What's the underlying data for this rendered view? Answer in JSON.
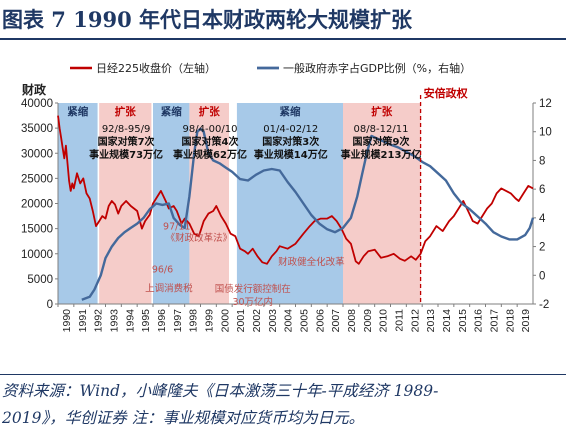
{
  "header": {
    "title": "图表 7   1990 年代日本财政两轮大规模扩张"
  },
  "footer": {
    "source_line1": "资料来源：Wind，小峰隆夫《日本激荡三十年-平成经济 1989-",
    "source_line2": "2019》，华创证券  注：事业规模对应货币均为日元。"
  },
  "chart_data": {
    "type": "line",
    "legend": {
      "placement": "top",
      "items": [
        "日经225收盘价（左轴）",
        "一般政府赤字占GDP比例（%，右轴）"
      ]
    },
    "left_axis_title": "财政",
    "left_axis": {
      "min": 0,
      "max": 40000,
      "step": 5000,
      "tick_labels": [
        "0",
        "5000",
        "10000",
        "15000",
        "20000",
        "25000",
        "30000",
        "35000",
        "40000"
      ]
    },
    "right_axis": {
      "min": -2,
      "max": 12,
      "step": 2,
      "tick_labels": [
        "-2",
        "0",
        "2",
        "4",
        "6",
        "8",
        "10",
        "12"
      ]
    },
    "x_axis": {
      "min": 1990,
      "max": 2020,
      "tick_labels": [
        "1990",
        "1991",
        "1992",
        "1993",
        "1994",
        "1995",
        "1996",
        "1997",
        "1998",
        "1999",
        "2000",
        "2001",
        "2002",
        "2003",
        "2004",
        "2005",
        "2006",
        "2007",
        "2008",
        "2009",
        "2010",
        "2011",
        "2012",
        "2013",
        "2014",
        "2015",
        "2016",
        "2017",
        "2018",
        "2019"
      ]
    },
    "grid": false,
    "colors": {
      "nikkei": "#c00000",
      "deficit": "#44699b",
      "tight": "#9dc3e6",
      "expand": "#f4c7c3",
      "annotation": "#c0504d",
      "abe_line": "#c00000"
    },
    "periods": [
      {
        "start": 1990.0,
        "end": 1992.5,
        "kind": "tight",
        "label": "紧缩"
      },
      {
        "start": 1992.6,
        "end": 1995.9,
        "kind": "expand",
        "label": "扩张"
      },
      {
        "start": 1996.0,
        "end": 1998.3,
        "kind": "tight",
        "label": "紧缩"
      },
      {
        "start": 1998.3,
        "end": 2000.8,
        "kind": "expand",
        "label": "扩张"
      },
      {
        "start": 2001.3,
        "end": 2008.0,
        "kind": "tight",
        "label": "紧缩"
      },
      {
        "start": 2008.0,
        "end": 2012.9,
        "kind": "expand",
        "label": "扩张"
      }
    ],
    "box_labels": [
      {
        "x": 1994.3,
        "lines": [
          "92/8-95/9",
          "国家对策7次",
          "事业规模73万亿"
        ]
      },
      {
        "x": 1999.6,
        "lines": [
          "98/4-00/10",
          "国家对策4次",
          "事业规模62万亿"
        ]
      },
      {
        "x": 2004.7,
        "lines": [
          "01/4-02/12",
          "国家对策3次",
          "事业规模14万亿"
        ]
      },
      {
        "x": 2010.4,
        "lines": [
          "08/8-12/11",
          "国家对策9次",
          "事业规模213万亿"
        ]
      }
    ],
    "abe": {
      "x": 2012.9,
      "label": "安倍政权"
    },
    "annotations": [
      {
        "x": 1997.5,
        "y": 14800,
        "text": "97/11"
      },
      {
        "x": 1998.9,
        "y": 12500,
        "text": "《财政改革法》"
      },
      {
        "x": 1996.6,
        "y": 6300,
        "text": "96/6"
      },
      {
        "x": 1997.0,
        "y": 2500,
        "text": "上调消费税"
      },
      {
        "x": 2006.0,
        "y": 7800,
        "text": "财政健全化改革"
      },
      {
        "x": 2002.3,
        "y": 2400,
        "text": "国债发行额控制在"
      },
      {
        "x": 2002.3,
        "y": -200,
        "text": "30万亿内"
      }
    ],
    "series": [
      {
        "name": "日经225收盘价（左轴）",
        "axis": "left",
        "x": [
          1990.0,
          1990.1,
          1990.2,
          1990.3,
          1990.4,
          1990.5,
          1990.6,
          1990.7,
          1990.8,
          1990.9,
          1991.0,
          1991.2,
          1991.4,
          1991.6,
          1991.8,
          1992.0,
          1992.2,
          1992.4,
          1992.6,
          1992.8,
          1993.0,
          1993.2,
          1993.4,
          1993.6,
          1993.8,
          1994.0,
          1994.3,
          1994.6,
          1995.0,
          1995.3,
          1995.5,
          1995.8,
          1996.0,
          1996.3,
          1996.5,
          1996.8,
          1997.0,
          1997.3,
          1997.5,
          1997.8,
          1998.0,
          1998.3,
          1998.6,
          1998.9,
          1999.2,
          1999.5,
          1999.8,
          2000.0,
          2000.3,
          2000.6,
          2000.9,
          2001.2,
          2001.5,
          2001.8,
          2002.0,
          2002.3,
          2002.6,
          2002.9,
          2003.2,
          2003.5,
          2003.8,
          2004.0,
          2004.5,
          2005.0,
          2005.5,
          2005.9,
          2006.2,
          2006.6,
          2007.0,
          2007.3,
          2007.6,
          2007.9,
          2008.2,
          2008.5,
          2008.8,
          2009.0,
          2009.3,
          2009.6,
          2010.0,
          2010.4,
          2010.8,
          2011.2,
          2011.6,
          2011.9,
          2012.3,
          2012.6,
          2012.9,
          2013.2,
          2013.5,
          2013.9,
          2014.3,
          2014.7,
          2015.0,
          2015.4,
          2015.6,
          2015.9,
          2016.2,
          2016.5,
          2016.8,
          2017.1,
          2017.4,
          2017.7,
          2018.0,
          2018.3,
          2018.6,
          2018.9,
          2019.1,
          2019.4,
          2019.7,
          2020.0
        ],
        "y": [
          37500,
          35000,
          33000,
          31000,
          29000,
          31500,
          28000,
          24500,
          22500,
          24000,
          23000,
          26000,
          24000,
          25000,
          22000,
          21000,
          18500,
          15500,
          16500,
          17500,
          17000,
          19500,
          20500,
          19800,
          18000,
          19500,
          20500,
          19500,
          18500,
          15000,
          16500,
          17800,
          20000,
          21500,
          22500,
          20500,
          19000,
          19500,
          18500,
          16000,
          17000,
          16000,
          14000,
          13500,
          16500,
          18000,
          18500,
          19500,
          17500,
          16000,
          14000,
          13500,
          11000,
          10500,
          10000,
          11000,
          9500,
          8300,
          8000,
          9500,
          10500,
          11500,
          11000,
          12000,
          14000,
          15500,
          16500,
          17000,
          17000,
          17500,
          16500,
          15000,
          13000,
          12000,
          8500,
          8000,
          9500,
          10500,
          10800,
          9200,
          9500,
          10000,
          9000,
          8600,
          9500,
          8800,
          10000,
          12500,
          13500,
          15500,
          14500,
          16500,
          17500,
          19500,
          20500,
          18500,
          16500,
          16000,
          17500,
          19000,
          20000,
          22000,
          23000,
          22500,
          22000,
          21000,
          20500,
          22000,
          23500,
          23000
        ]
      },
      {
        "name": "一般政府赤字占GDP比例（%，右轴）",
        "axis": "right",
        "x": [
          1991.5,
          1992.0,
          1992.3,
          1992.7,
          1993.0,
          1993.4,
          1993.8,
          1994.2,
          1994.6,
          1995.0,
          1995.4,
          1995.8,
          1996.2,
          1996.6,
          1997.0,
          1997.3,
          1997.7,
          1998.0,
          1998.3,
          1998.6,
          1998.8,
          1999.0,
          1999.2,
          1999.5,
          1999.8,
          2000.2,
          2000.6,
          2001.0,
          2001.5,
          2002.0,
          2002.5,
          2003.0,
          2003.5,
          2004.0,
          2004.5,
          2005.0,
          2005.5,
          2006.0,
          2006.5,
          2007.0,
          2007.5,
          2008.0,
          2008.5,
          2008.9,
          2009.2,
          2009.5,
          2009.8,
          2010.2,
          2010.6,
          2011.0,
          2011.5,
          2012.0,
          2012.5,
          2013.0,
          2013.5,
          2014.0,
          2014.5,
          2015.0,
          2015.5,
          2016.0,
          2016.5,
          2017.0,
          2017.5,
          2018.0,
          2018.5,
          2019.0,
          2019.5,
          2019.8,
          2020.0
        ],
        "y": [
          -1.7,
          -1.5,
          -1.0,
          0.0,
          1.2,
          2.0,
          2.6,
          3.0,
          3.3,
          3.6,
          4.0,
          4.6,
          5.0,
          4.9,
          5.0,
          4.0,
          3.5,
          3.3,
          5.5,
          8.5,
          10.0,
          10.2,
          10.0,
          8.5,
          8.0,
          7.8,
          7.5,
          7.2,
          6.7,
          6.6,
          7.0,
          7.3,
          7.4,
          7.3,
          6.5,
          5.8,
          5.0,
          4.2,
          3.6,
          3.2,
          3.0,
          3.3,
          4.0,
          5.5,
          7.0,
          8.5,
          9.7,
          9.5,
          9.3,
          9.1,
          8.9,
          8.6,
          8.3,
          7.9,
          7.6,
          7.1,
          6.6,
          5.7,
          5.0,
          4.6,
          4.1,
          3.6,
          3.0,
          2.7,
          2.5,
          2.5,
          2.8,
          3.3,
          4.0
        ]
      }
    ]
  }
}
